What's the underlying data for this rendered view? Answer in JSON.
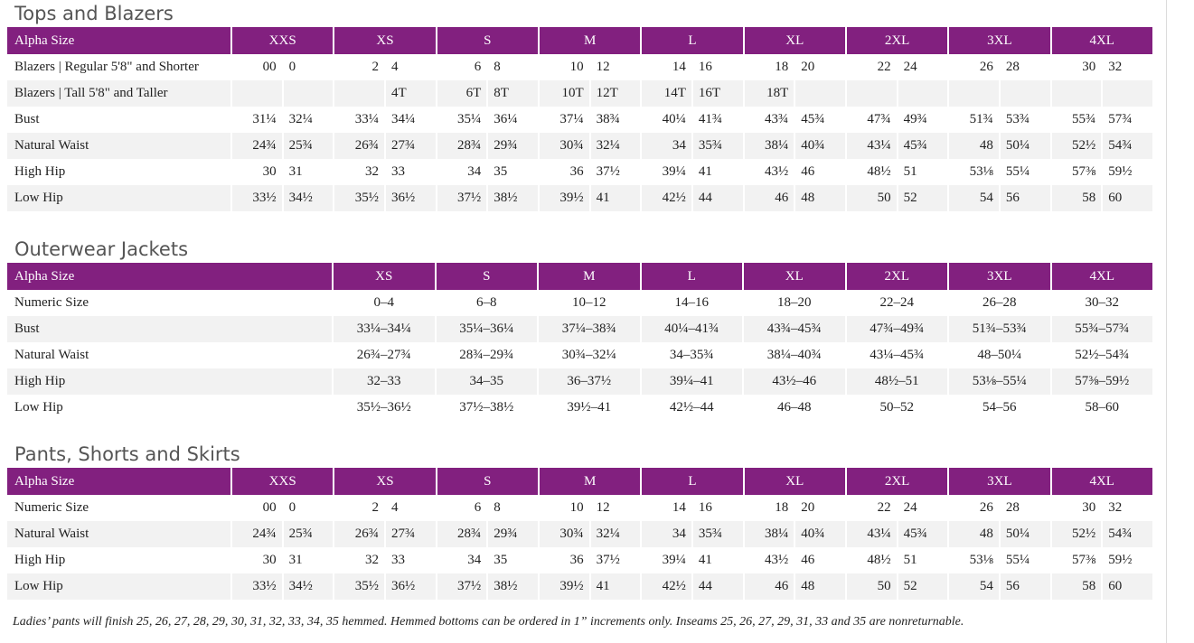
{
  "sections": [
    {
      "title": "Tops and Blazers",
      "header": [
        "Alpha Size",
        "XXS",
        "XS",
        "S",
        "M",
        "L",
        "XL",
        "2XL",
        "3XL",
        "4XL"
      ],
      "rows": [
        [
          "Blazers | Regular 5'8\" and Shorter",
          "00",
          "0",
          "2",
          "4",
          "6",
          "8",
          "10",
          "12",
          "14",
          "16",
          "18",
          "20",
          "22",
          "24",
          "26",
          "28",
          "30",
          "32"
        ],
        [
          "Blazers | Tall 5'8\" and Taller",
          null,
          null,
          null,
          "4T",
          "6T",
          "8T",
          "10T",
          "12T",
          "14T",
          "16T",
          "18T",
          null,
          null,
          null,
          null,
          null,
          null,
          null
        ],
        [
          "Bust",
          "31¼",
          "32¼",
          "33¼",
          "34¼",
          "35¼",
          "36¼",
          "37¼",
          "38¾",
          "40¼",
          "41¾",
          "43¾",
          "45¾",
          "47¾",
          "49¾",
          "51¾",
          "53¾",
          "55¾",
          "57¾"
        ],
        [
          "Natural Waist",
          "24¾",
          "25¾",
          "26¾",
          "27¾",
          "28¾",
          "29¾",
          "30¾",
          "32¼",
          "34",
          "35¾",
          "38¼",
          "40¾",
          "43¼",
          "45¾",
          "48",
          "50¼",
          "52½",
          "54¾"
        ],
        [
          "High Hip",
          "30",
          "31",
          "32",
          "33",
          "34",
          "35",
          "36",
          "37½",
          "39¼",
          "41",
          "43½",
          "46",
          "48½",
          "51",
          "53⅛",
          "55¼",
          "57⅜",
          "59½"
        ],
        [
          "Low Hip",
          "33½",
          "34½",
          "35½",
          "36½",
          "37½",
          "38½",
          "39½",
          "41",
          "42½",
          "44",
          "46",
          "48",
          "50",
          "52",
          "54",
          "56",
          "58",
          "60"
        ]
      ]
    },
    {
      "title": "Outerwear Jackets",
      "header": [
        "Alpha Size",
        "XS",
        "S",
        "M",
        "L",
        "XL",
        "2XL",
        "3XL",
        "4XL"
      ],
      "rows": [
        [
          "Numeric Size",
          "0–4",
          "6–8",
          "10–12",
          "14–16",
          "18–20",
          "22–24",
          "26–28",
          "30–32"
        ],
        [
          "Bust",
          "33¼–34¼",
          "35¼–36¼",
          "37¼–38¾",
          "40¼–41¾",
          "43¾–45¾",
          "47¾–49¾",
          "51¾–53¾",
          "55¾–57¾"
        ],
        [
          "Natural Waist",
          "26¾–27¾",
          "28¾–29¾",
          "30¾–32¼",
          "34–35¾",
          "38¼–40¾",
          "43¼–45¾",
          "48–50¼",
          "52½–54¾"
        ],
        [
          "High Hip",
          "32–33",
          "34–35",
          "36–37½",
          "39¼–41",
          "43½–46",
          "48½–51",
          "53⅛–55¼",
          "57⅜–59½"
        ],
        [
          "Low Hip",
          "35½–36½",
          "37½–38½",
          "39½–41",
          "42½–44",
          "46–48",
          "50–52",
          "54–56",
          "58–60"
        ]
      ]
    },
    {
      "title": "Pants, Shorts and Skirts",
      "header": [
        "Alpha Size",
        "XXS",
        "XS",
        "S",
        "M",
        "L",
        "XL",
        "2XL",
        "3XL",
        "4XL"
      ],
      "rows": [
        [
          "Numeric Size",
          "00",
          "0",
          "2",
          "4",
          "6",
          "8",
          "10",
          "12",
          "14",
          "16",
          "18",
          "20",
          "22",
          "24",
          "26",
          "28",
          "30",
          "32"
        ],
        [
          "Natural Waist",
          "24¾",
          "25¾",
          "26¾",
          "27¾",
          "28¾",
          "29¾",
          "30¾",
          "32¼",
          "34",
          "35¾",
          "38¼",
          "40¾",
          "43¼",
          "45¾",
          "48",
          "50¼",
          "52½",
          "54¾"
        ],
        [
          "High Hip",
          "30",
          "31",
          "32",
          "33",
          "34",
          "35",
          "36",
          "37½",
          "39¼",
          "41",
          "43½",
          "46",
          "48½",
          "51",
          "53⅛",
          "55¼",
          "57⅜",
          "59½"
        ],
        [
          "Low Hip",
          "33½",
          "34½",
          "35½",
          "36½",
          "37½",
          "38½",
          "39½",
          "41",
          "42½",
          "44",
          "46",
          "48",
          "50",
          "52",
          "54",
          "56",
          "58",
          "60"
        ]
      ]
    }
  ],
  "footnote": "Ladies’ pants will finish 25, 26, 27, 28, 29, 30, 31, 32, 33, 34, 35 hemmed. Hemmed bottoms can be ordered in 1” increments only. Inseams 25, 26, 27, 29, 31, 33 and 35 are nonreturnable."
}
